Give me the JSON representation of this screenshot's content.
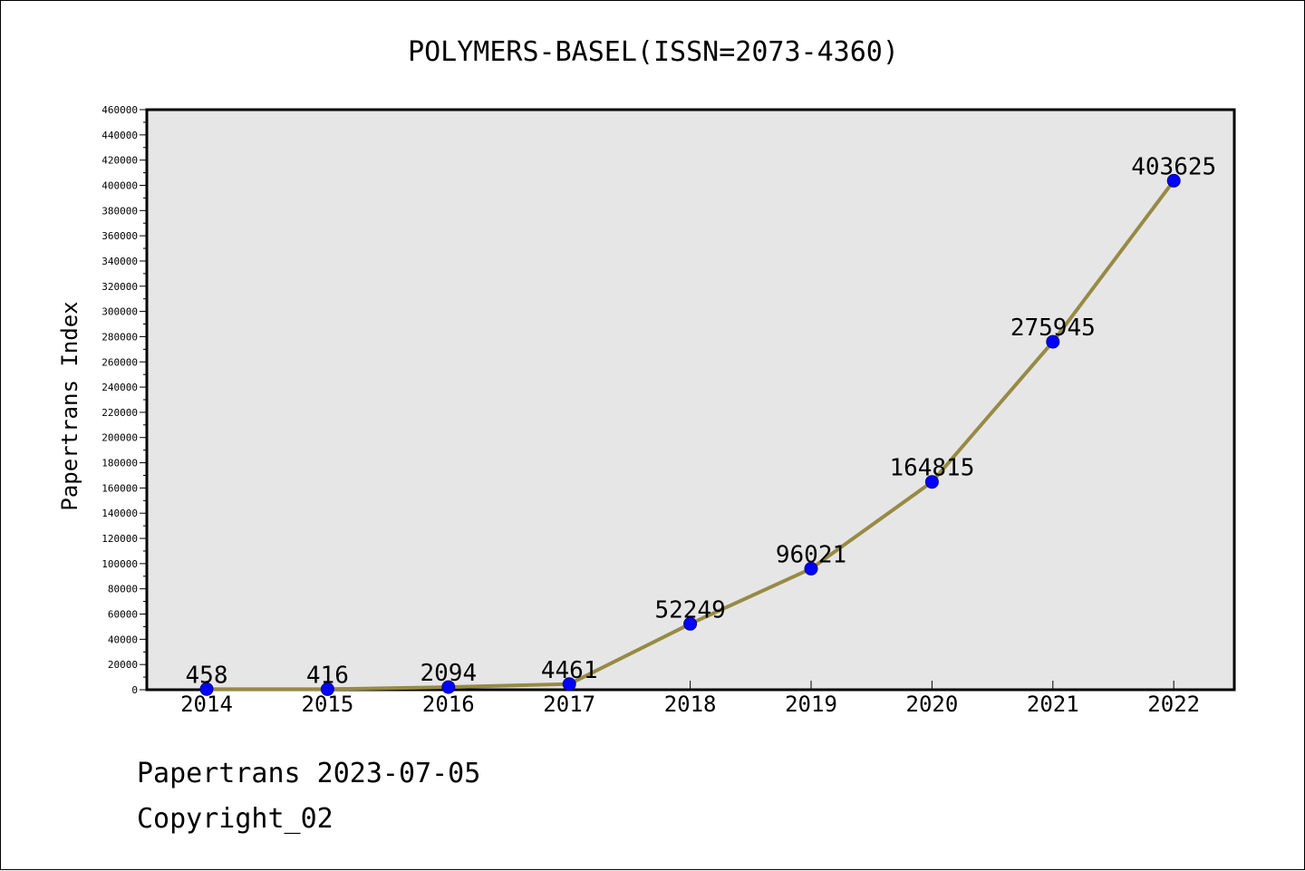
{
  "chart_data": {
    "type": "line",
    "title": "POLYMERS-BASEL(ISSN=2073-4360)",
    "xlabel": "",
    "ylabel": "Papertrans Index",
    "categories": [
      "2014",
      "2015",
      "2016",
      "2017",
      "2018",
      "2019",
      "2020",
      "2021",
      "2022"
    ],
    "series": [
      {
        "values": [
          458,
          416,
          2094,
          4461,
          52249,
          96021,
          164815,
          275945,
          403625
        ]
      }
    ],
    "data_labels": [
      "458",
      "416",
      "2094",
      "4461",
      "52249",
      "96021",
      "164815",
      "275945",
      "403625"
    ],
    "ylim": [
      0,
      460000
    ],
    "ytick_step": 20000,
    "grid": false,
    "legend": "none",
    "colors": {
      "line": "#978a45",
      "marker_fill": "#0000ff",
      "marker_edge": "#00008b",
      "plot_background": "#e6e6e6",
      "axes_border": "#000000"
    }
  },
  "footer": {
    "line1": "Papertrans 2023-07-05",
    "line2": "Copyright_02"
  }
}
